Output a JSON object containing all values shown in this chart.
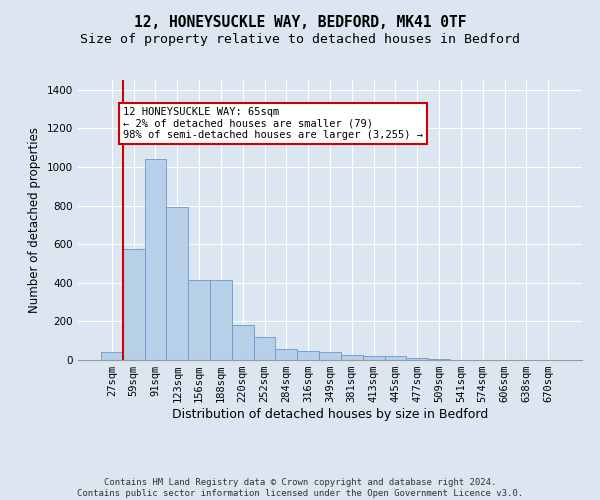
{
  "title_line1": "12, HONEYSUCKLE WAY, BEDFORD, MK41 0TF",
  "title_line2": "Size of property relative to detached houses in Bedford",
  "xlabel": "Distribution of detached houses by size in Bedford",
  "ylabel": "Number of detached properties",
  "categories": [
    "27sqm",
    "59sqm",
    "91sqm",
    "123sqm",
    "156sqm",
    "188sqm",
    "220sqm",
    "252sqm",
    "284sqm",
    "316sqm",
    "349sqm",
    "381sqm",
    "413sqm",
    "445sqm",
    "477sqm",
    "509sqm",
    "541sqm",
    "574sqm",
    "606sqm",
    "638sqm",
    "670sqm"
  ],
  "values": [
    40,
    575,
    1040,
    790,
    415,
    415,
    180,
    120,
    55,
    45,
    40,
    25,
    22,
    20,
    10,
    5,
    2,
    1,
    0,
    0,
    0
  ],
  "bar_color": "#b8cfe8",
  "bar_edgecolor": "#6699cc",
  "marker_color": "#cc0000",
  "annotation_text": "12 HONEYSUCKLE WAY: 65sqm\n← 2% of detached houses are smaller (79)\n98% of semi-detached houses are larger (3,255) →",
  "annotation_box_facecolor": "#ffffff",
  "annotation_box_edgecolor": "#cc0000",
  "ylim": [
    0,
    1450
  ],
  "yticks": [
    0,
    200,
    400,
    600,
    800,
    1000,
    1200,
    1400
  ],
  "background_color": "#dce6f0",
  "plot_background": "#dce6f0",
  "grid_color": "#ffffff",
  "footer_line1": "Contains HM Land Registry data © Crown copyright and database right 2024.",
  "footer_line2": "Contains public sector information licensed under the Open Government Licence v3.0.",
  "title_fontsize": 10.5,
  "subtitle_fontsize": 9.5,
  "axis_label_fontsize": 8.5,
  "tick_fontsize": 7.5,
  "annotation_fontsize": 7.5,
  "footer_fontsize": 6.5,
  "marker_bin_index": 1
}
